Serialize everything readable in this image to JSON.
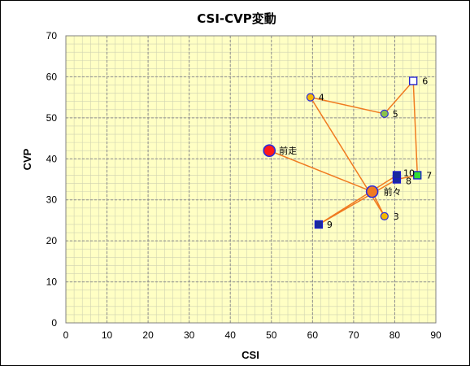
{
  "chart_data": {
    "type": "scatter",
    "title": "CSI-CVP変動",
    "xlabel": "CSI",
    "ylabel": "CVP",
    "xlim": [
      0,
      90
    ],
    "ylim": [
      0,
      70
    ],
    "x_ticks": [
      0,
      10,
      20,
      30,
      40,
      50,
      60,
      70,
      80,
      90
    ],
    "y_ticks": [
      0,
      10,
      20,
      30,
      40,
      50,
      60,
      70
    ],
    "major_grid": true,
    "minor_grid": true,
    "plot_background": "#ffffc4",
    "line_color": "#f07a20",
    "path_order": [
      "前走",
      "前々",
      "3",
      "4",
      "5",
      "6",
      "7",
      "8",
      "9",
      "10"
    ],
    "points": [
      {
        "label": "前走",
        "x": 49.5,
        "y": 42,
        "marker": "circle-large",
        "fill": "#ff1a1a",
        "stroke": "#2b2bdc"
      },
      {
        "label": "前々",
        "x": 74.5,
        "y": 32,
        "marker": "circle-large",
        "fill": "#f07a20",
        "stroke": "#2b2bdc"
      },
      {
        "label": "3",
        "x": 77.5,
        "y": 26,
        "marker": "circle",
        "fill": "#f5b800",
        "stroke": "#2b2bdc"
      },
      {
        "label": "4",
        "x": 59.5,
        "y": 55,
        "marker": "circle",
        "fill": "#f5b800",
        "stroke": "#2b2bdc"
      },
      {
        "label": "5",
        "x": 77.5,
        "y": 51,
        "marker": "circle",
        "fill": "#8bc34a",
        "stroke": "#2b2bdc"
      },
      {
        "label": "6",
        "x": 84.5,
        "y": 59,
        "marker": "square",
        "fill": "#ffffff",
        "stroke": "#1a1ad0"
      },
      {
        "label": "7",
        "x": 85.5,
        "y": 36,
        "marker": "square",
        "fill": "#33dd33",
        "stroke": "#1a1ad0"
      },
      {
        "label": "8",
        "x": 80.5,
        "y": 35,
        "marker": "square",
        "fill": "#1a2a9a",
        "stroke": "#1a1ad0"
      },
      {
        "label": "9",
        "x": 61.5,
        "y": 24,
        "marker": "square",
        "fill": "#1a2a9a",
        "stroke": "#1a1ad0"
      },
      {
        "label": "10",
        "x": 80.5,
        "y": 36,
        "marker": "square",
        "fill": "#1a2a9a",
        "stroke": "#1a1ad0"
      }
    ]
  }
}
